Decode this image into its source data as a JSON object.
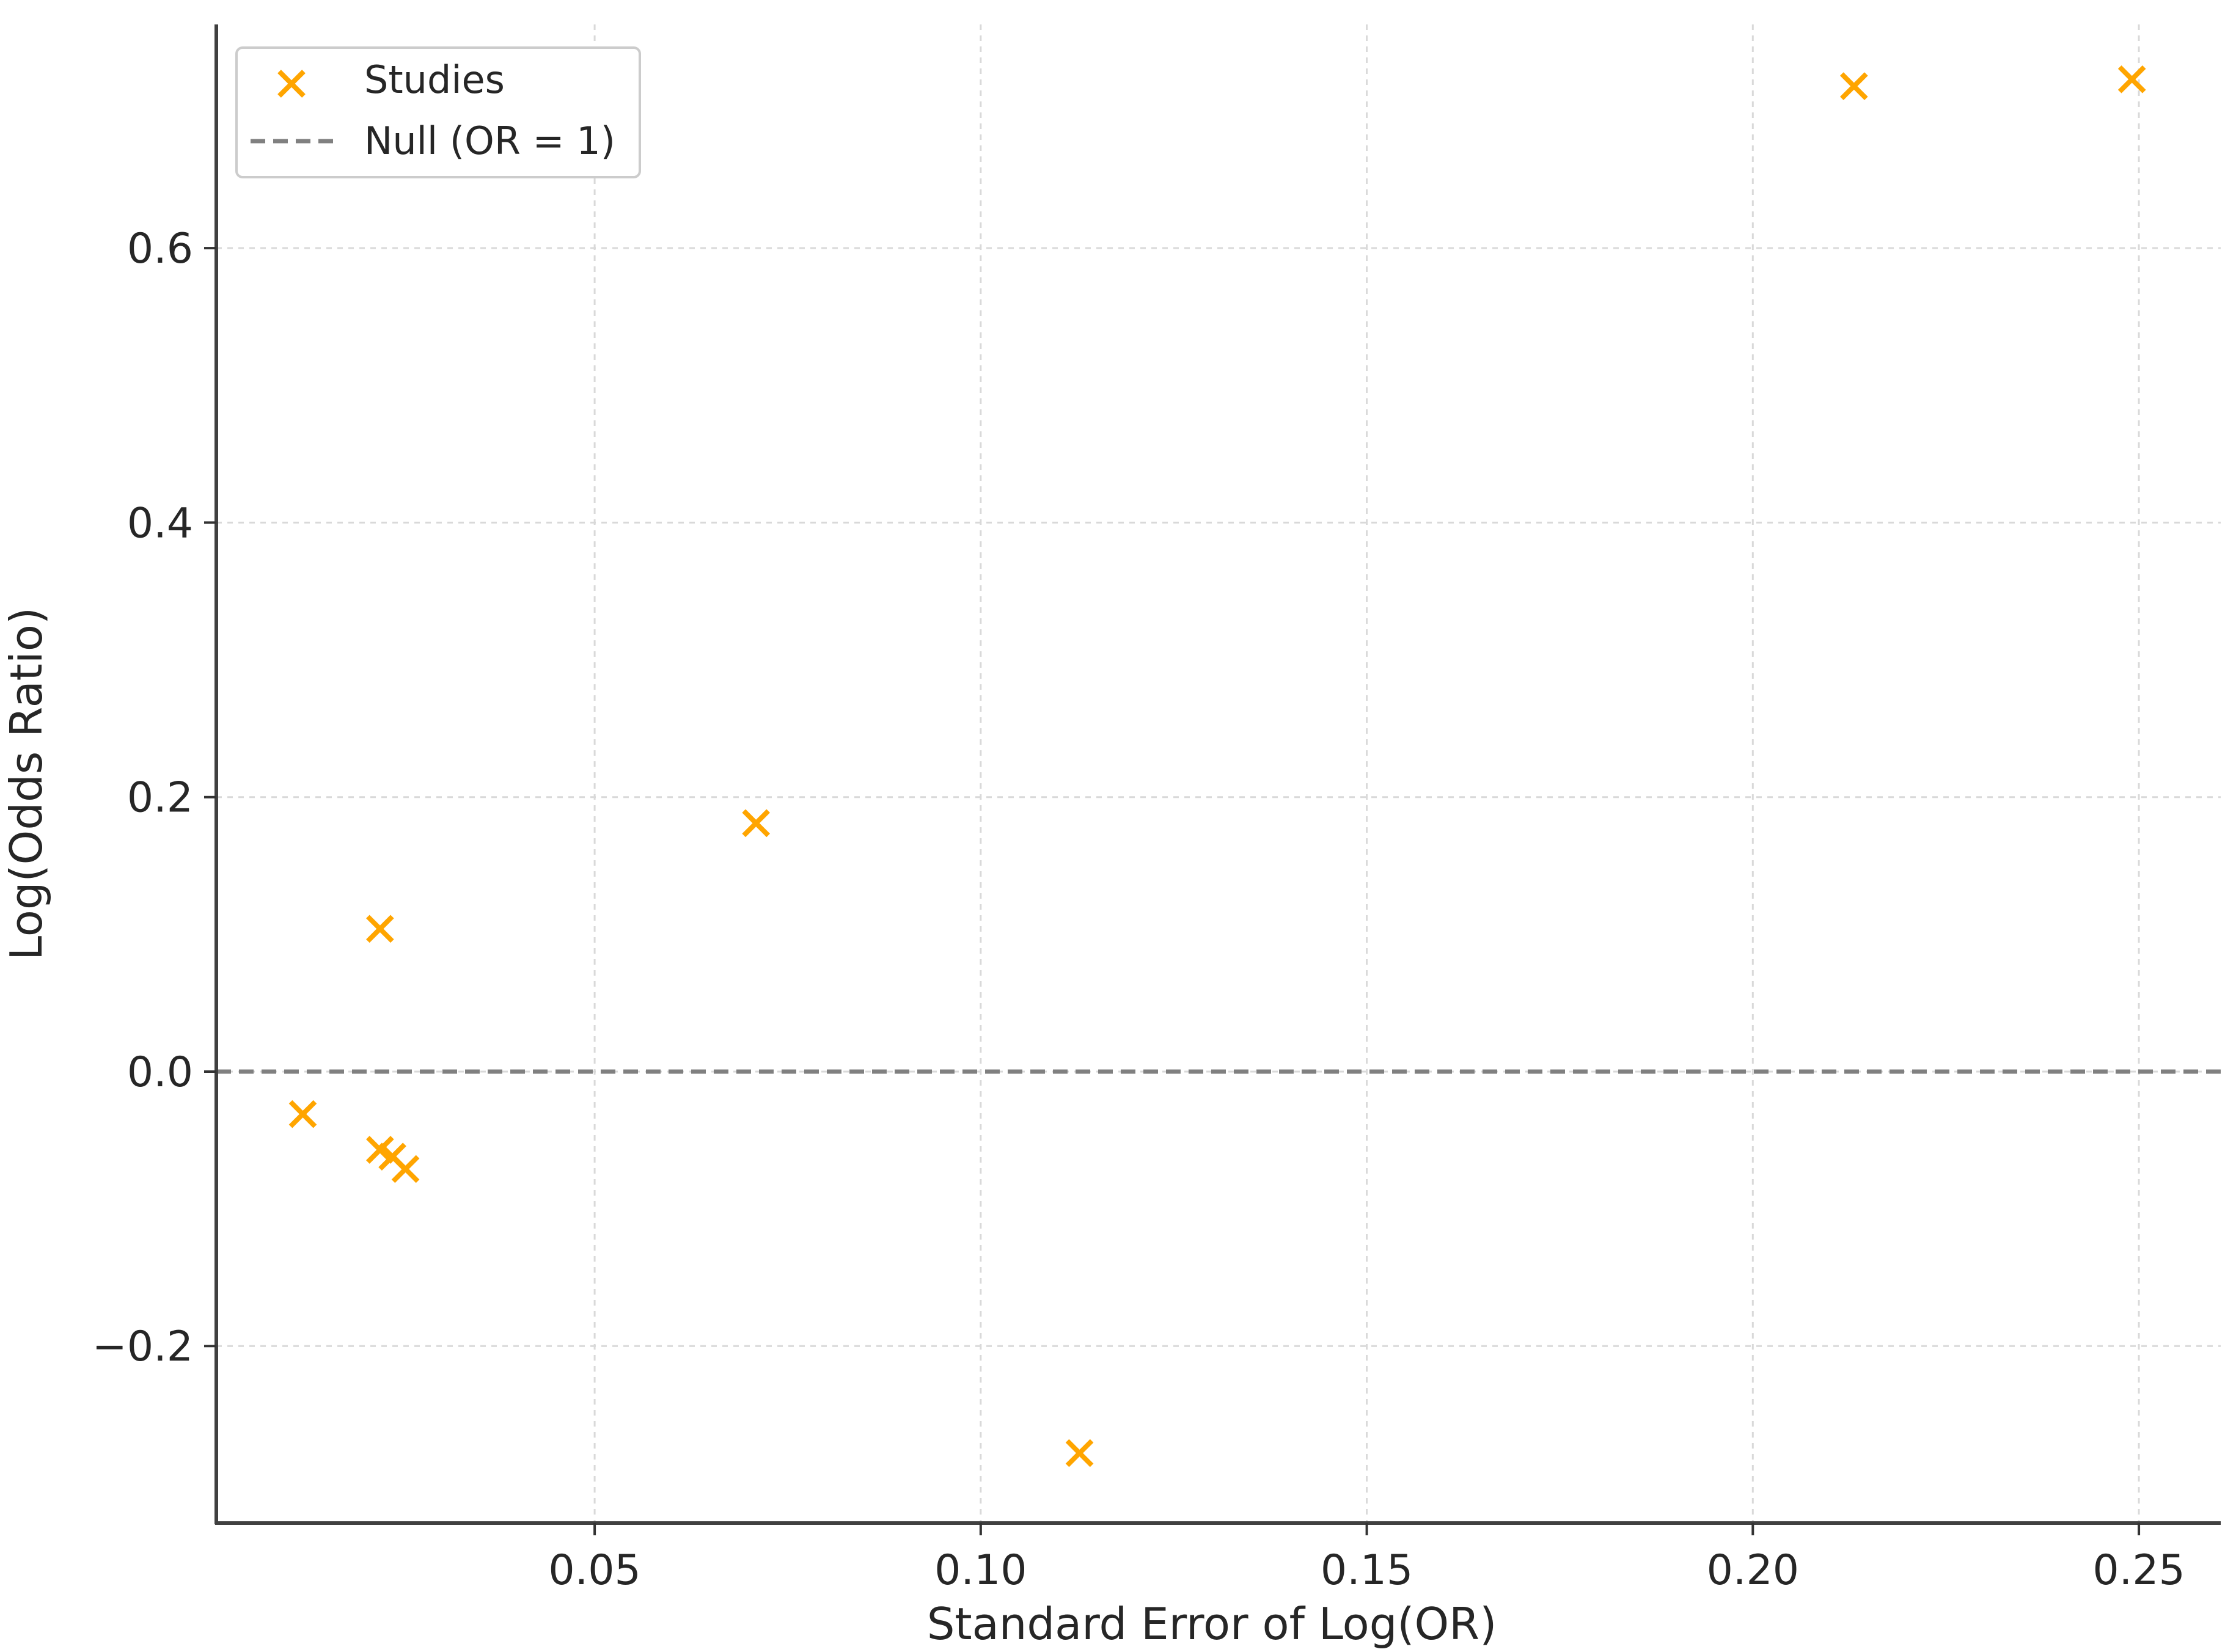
{
  "chart_data": {
    "type": "scatter",
    "title": "",
    "xlabel": "Standard Error of Log(OR)",
    "ylabel": "Log(Odds Ratio)",
    "xlim": [
      0.001,
      0.2606
    ],
    "ylim": [
      -0.329,
      0.763
    ],
    "grid": true,
    "legend_position": "top-left",
    "x_ticks": [
      0.05,
      0.1,
      0.15,
      0.2,
      0.25
    ],
    "x_tick_labels": [
      "0.05",
      "0.10",
      "0.15",
      "0.20",
      "0.25"
    ],
    "y_ticks": [
      -0.2,
      0.0,
      0.2,
      0.4,
      0.6
    ],
    "y_tick_labels": [
      "−0.2",
      "0.0",
      "0.2",
      "0.4",
      "0.6"
    ],
    "series": [
      {
        "name": "Studies",
        "marker": "x",
        "color": "#FFA500",
        "points": [
          {
            "x": 0.0122,
            "y": -0.031
          },
          {
            "x": 0.0222,
            "y": 0.104
          },
          {
            "x": 0.0222,
            "y": -0.057
          },
          {
            "x": 0.0238,
            "y": -0.062
          },
          {
            "x": 0.0255,
            "y": -0.071
          },
          {
            "x": 0.0709,
            "y": 0.181
          },
          {
            "x": 0.1128,
            "y": -0.278
          },
          {
            "x": 0.2131,
            "y": 0.718
          },
          {
            "x": 0.2491,
            "y": 0.723
          }
        ]
      }
    ],
    "reference_lines": [
      {
        "name": "Null (OR = 1)",
        "orientation": "horizontal",
        "y": 0.0,
        "style": "dashed",
        "color": "#808080"
      }
    ],
    "legend": [
      {
        "label": "Studies",
        "kind": "marker",
        "color": "#FFA500"
      },
      {
        "label": "Null (OR = 1)",
        "kind": "dashed-line",
        "color": "#808080"
      }
    ]
  }
}
